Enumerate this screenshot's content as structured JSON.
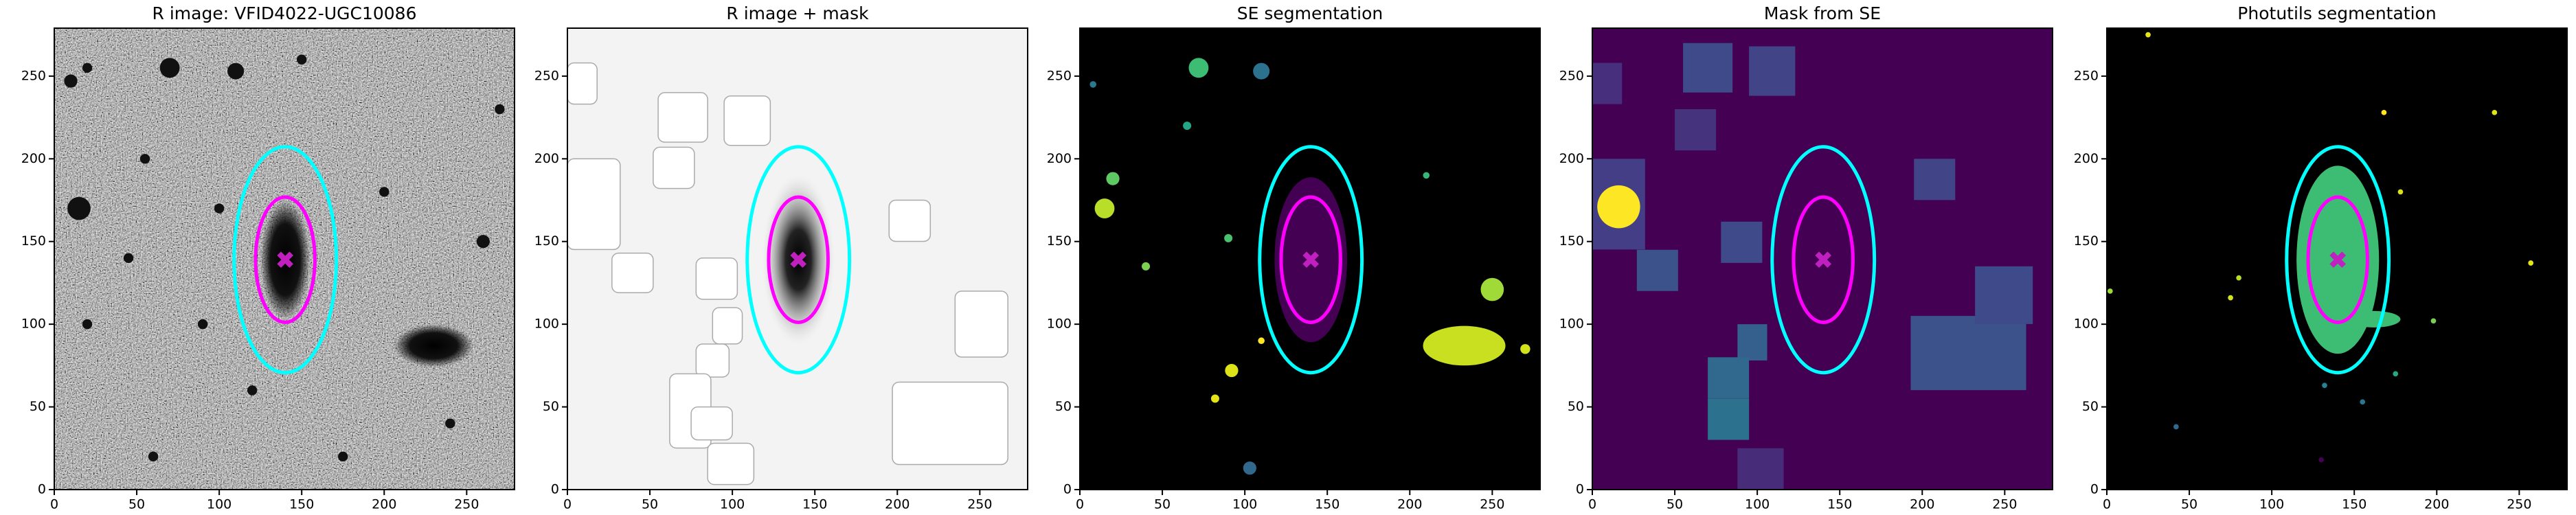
{
  "chart_data": [
    {
      "type": "image",
      "title": "R image: VFID4022-UGC10086",
      "xlim": [
        0,
        279
      ],
      "ylim": [
        0,
        279
      ],
      "xticks": [
        0,
        50,
        100,
        150,
        200,
        250
      ],
      "yticks": [
        0,
        50,
        100,
        150,
        200,
        250
      ],
      "ellipses": [
        {
          "x": 140,
          "y": 139,
          "a": 31,
          "b": 68.5,
          "color": "#00ffff"
        },
        {
          "x": 140,
          "y": 139,
          "a": 18,
          "b": 38,
          "color": "#ff00ff"
        }
      ],
      "marker": {
        "x": 140,
        "y": 139,
        "color": "#c020c0"
      }
    },
    {
      "type": "image",
      "title": "R image + mask",
      "xlim": [
        0,
        279
      ],
      "ylim": [
        0,
        279
      ],
      "xticks": [
        0,
        50,
        100,
        150,
        200,
        250
      ],
      "yticks": [
        0,
        50,
        100,
        150,
        200,
        250
      ],
      "ellipses": [
        {
          "x": 140,
          "y": 139,
          "a": 31,
          "b": 68.5,
          "color": "#00ffff"
        },
        {
          "x": 140,
          "y": 139,
          "a": 18,
          "b": 38,
          "color": "#ff00ff"
        }
      ],
      "marker": {
        "x": 140,
        "y": 139,
        "color": "#c020c0"
      }
    },
    {
      "type": "image",
      "title": "SE segmentation",
      "xlim": [
        0,
        279
      ],
      "ylim": [
        0,
        279
      ],
      "xticks": [
        0,
        50,
        100,
        150,
        200,
        250
      ],
      "yticks": [
        0,
        50,
        100,
        150,
        200,
        250
      ],
      "ellipses": [
        {
          "x": 140,
          "y": 139,
          "a": 31,
          "b": 68.5,
          "color": "#00ffff"
        },
        {
          "x": 140,
          "y": 139,
          "a": 18,
          "b": 38,
          "color": "#ff00ff"
        }
      ],
      "marker": {
        "x": 140,
        "y": 139,
        "color": "#c020c0"
      }
    },
    {
      "type": "image",
      "title": "Mask from SE",
      "xlim": [
        0,
        279
      ],
      "ylim": [
        0,
        279
      ],
      "xticks": [
        0,
        50,
        100,
        150,
        200,
        250
      ],
      "yticks": [
        0,
        50,
        100,
        150,
        200,
        250
      ],
      "ellipses": [
        {
          "x": 140,
          "y": 139,
          "a": 31,
          "b": 68.5,
          "color": "#00ffff"
        },
        {
          "x": 140,
          "y": 139,
          "a": 18,
          "b": 38,
          "color": "#ff00ff"
        }
      ],
      "marker": {
        "x": 140,
        "y": 139,
        "color": "#c020c0"
      }
    },
    {
      "type": "image",
      "title": "Photutils segmentation",
      "xlim": [
        0,
        279
      ],
      "ylim": [
        0,
        279
      ],
      "xticks": [
        0,
        50,
        100,
        150,
        200,
        250
      ],
      "yticks": [
        0,
        50,
        100,
        150,
        200,
        250
      ],
      "ellipses": [
        {
          "x": 140,
          "y": 139,
          "a": 31,
          "b": 68.5,
          "color": "#00ffff"
        },
        {
          "x": 140,
          "y": 139,
          "a": 18,
          "b": 38,
          "color": "#ff00ff"
        }
      ],
      "marker": {
        "x": 140,
        "y": 139,
        "color": "#c020c0"
      }
    }
  ]
}
